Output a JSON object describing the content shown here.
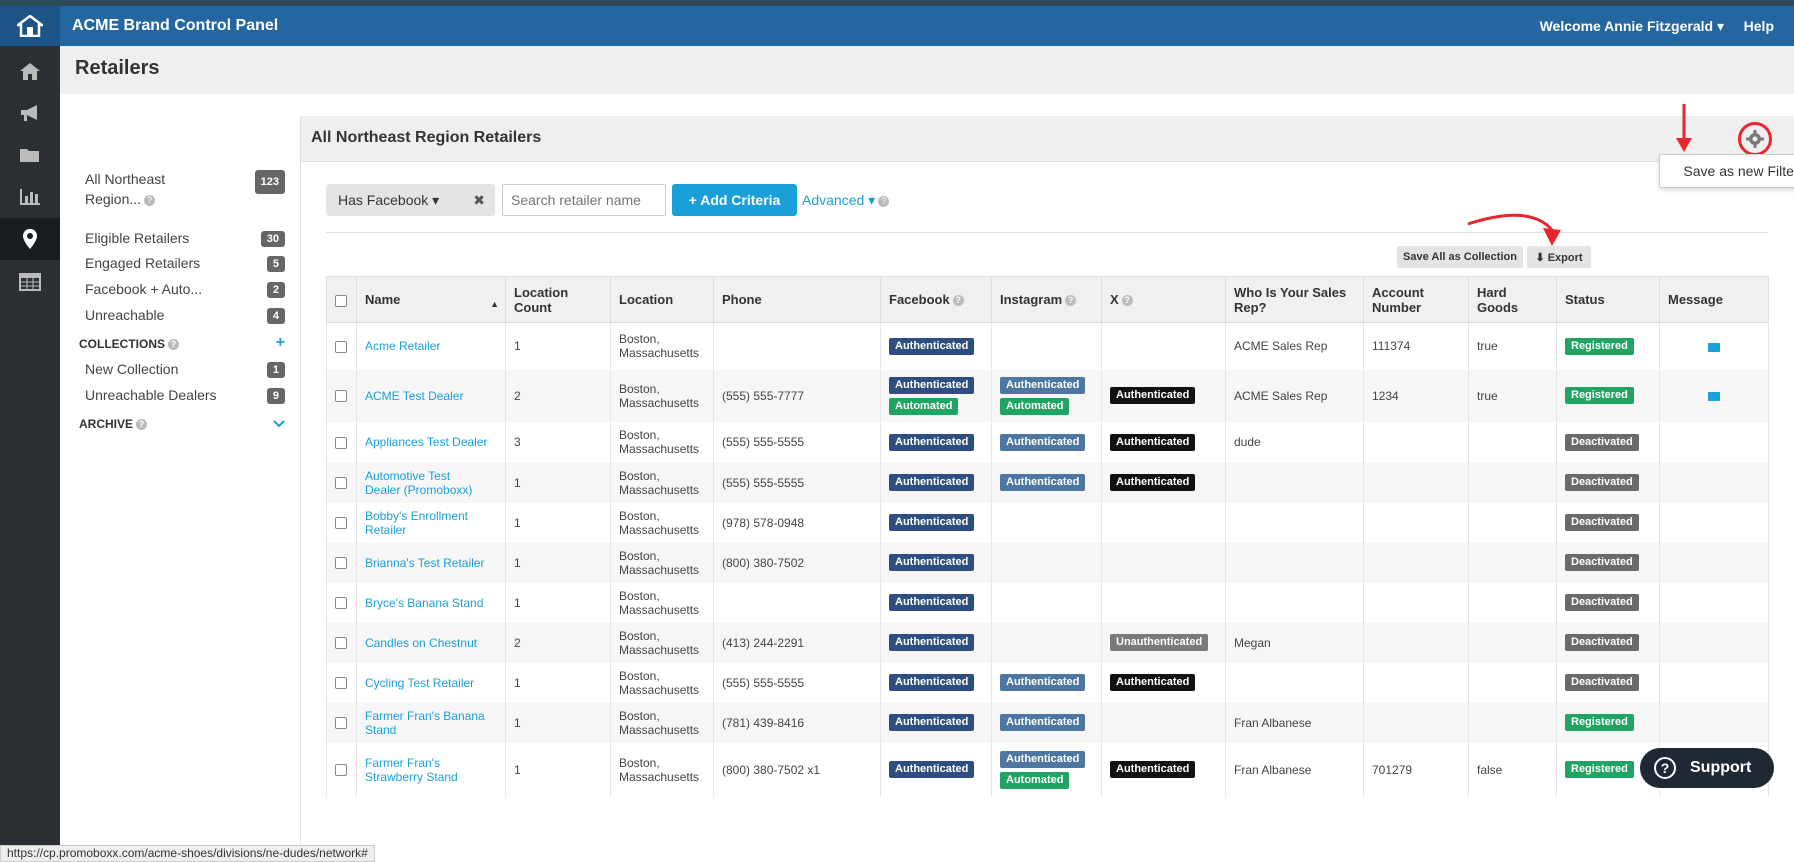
{
  "header": {
    "title": "ACME Brand Control Panel",
    "welcome": "Welcome Annie Fitzgerald ▾",
    "help": "Help"
  },
  "page_title": "Retailers",
  "filters": {
    "items": [
      {
        "label_line1": "All Northeast",
        "label_line2": "Region...",
        "count": "123"
      },
      {
        "label": "Eligible Retailers",
        "count": "30"
      },
      {
        "label": "Engaged Retailers",
        "count": "5"
      },
      {
        "label": "Facebook + Auto...",
        "count": "2"
      },
      {
        "label": "Unreachable",
        "count": "4"
      }
    ],
    "collections_label": "COLLECTIONS",
    "collections": [
      {
        "label": "New Collection",
        "count": "1"
      },
      {
        "label": "Unreachable Dealers",
        "count": "9"
      }
    ],
    "archive_label": "ARCHIVE"
  },
  "panel": {
    "title": "All Northeast Region Retailers",
    "save_filter": "Save as new Filter",
    "criteria_chip": "Has Facebook ▾",
    "chip_close": "✖",
    "search_placeholder": "Search retailer name",
    "add_criteria": "+ Add Criteria",
    "advanced": "Advanced ▾",
    "save_collection": "Save All as Collection",
    "export": "⬇ Export"
  },
  "table": {
    "headers": {
      "name": "Name",
      "loc_count_1": "Location",
      "loc_count_2": "Count",
      "location": "Location",
      "phone": "Phone",
      "facebook": "Facebook",
      "instagram": "Instagram",
      "x": "X",
      "rep_1": "Who Is Your Sales",
      "rep_2": "Rep?",
      "acct_1": "Account",
      "acct_2": "Number",
      "hard_1": "Hard",
      "hard_2": "Goods",
      "status": "Status",
      "message": "Message"
    },
    "loc_city": "Boston,",
    "loc_state": "Massachusetts",
    "rows": [
      {
        "name_1": "Acme Retailer",
        "name_2": "",
        "count": "1",
        "phone": "",
        "fb": "Authenticated",
        "fb_auto": "",
        "ig": "",
        "ig_auto": "",
        "x": "",
        "rep": "ACME Sales Rep",
        "acct": "111374",
        "hard": "true",
        "status": "Registered",
        "msg": true
      },
      {
        "name_1": "ACME Test Dealer",
        "name_2": "",
        "count": "2",
        "phone": "(555) 555-7777",
        "fb": "Authenticated",
        "fb_auto": "Automated",
        "ig": "Authenticated",
        "ig_auto": "Automated",
        "x": "Authenticated",
        "rep": "ACME Sales Rep",
        "acct": "1234",
        "hard": "true",
        "status": "Registered",
        "msg": true
      },
      {
        "name_1": "Appliances Test Dealer",
        "name_2": "",
        "count": "3",
        "phone": "(555) 555-5555",
        "fb": "Authenticated",
        "fb_auto": "",
        "ig": "Authenticated",
        "ig_auto": "",
        "x": "Authenticated",
        "rep": "dude",
        "acct": "",
        "hard": "",
        "status": "Deactivated",
        "msg": false
      },
      {
        "name_1": "Automotive Test",
        "name_2": "Dealer (Promoboxx)",
        "count": "1",
        "phone": "(555) 555-5555",
        "fb": "Authenticated",
        "fb_auto": "",
        "ig": "Authenticated",
        "ig_auto": "",
        "x": "Authenticated",
        "rep": "",
        "acct": "",
        "hard": "",
        "status": "Deactivated",
        "msg": false
      },
      {
        "name_1": "Bobby's Enrollment",
        "name_2": "Retailer",
        "count": "1",
        "phone": "(978) 578-0948",
        "fb": "Authenticated",
        "fb_auto": "",
        "ig": "",
        "ig_auto": "",
        "x": "",
        "rep": "",
        "acct": "",
        "hard": "",
        "status": "Deactivated",
        "msg": false
      },
      {
        "name_1": "Brianna's Test Retailer",
        "name_2": "",
        "count": "1",
        "phone": "(800) 380-7502",
        "fb": "Authenticated",
        "fb_auto": "",
        "ig": "",
        "ig_auto": "",
        "x": "",
        "rep": "",
        "acct": "",
        "hard": "",
        "status": "Deactivated",
        "msg": false
      },
      {
        "name_1": "Bryce's Banana Stand",
        "name_2": "",
        "count": "1",
        "phone": "",
        "fb": "Authenticated",
        "fb_auto": "",
        "ig": "",
        "ig_auto": "",
        "x": "",
        "rep": "",
        "acct": "",
        "hard": "",
        "status": "Deactivated",
        "msg": false
      },
      {
        "name_1": "Candles on Chestnut",
        "name_2": "",
        "count": "2",
        "phone": "(413) 244-2291",
        "fb": "Authenticated",
        "fb_auto": "",
        "ig": "",
        "ig_auto": "",
        "x": "Unauthenticated",
        "rep": "Megan",
        "acct": "",
        "hard": "",
        "status": "Deactivated",
        "msg": false
      },
      {
        "name_1": "Cycling Test Retailer",
        "name_2": "",
        "count": "1",
        "phone": "(555) 555-5555",
        "fb": "Authenticated",
        "fb_auto": "",
        "ig": "Authenticated",
        "ig_auto": "",
        "x": "Authenticated",
        "rep": "",
        "acct": "",
        "hard": "",
        "status": "Deactivated",
        "msg": false
      },
      {
        "name_1": "Farmer Fran's Banana",
        "name_2": "Stand",
        "count": "1",
        "phone": "(781) 439-8416",
        "fb": "Authenticated",
        "fb_auto": "",
        "ig": "Authenticated",
        "ig_auto": "",
        "x": "",
        "rep": "Fran Albanese",
        "acct": "",
        "hard": "",
        "status": "Registered",
        "msg": false
      },
      {
        "name_1": "Farmer Fran's",
        "name_2": "Strawberry Stand",
        "count": "1",
        "phone": "(800) 380-7502 x1",
        "fb": "Authenticated",
        "fb_auto": "",
        "ig": "Authenticated",
        "ig_auto": "Automated",
        "x": "Authenticated",
        "rep": "Fran Albanese",
        "acct": "701279",
        "hard": "false",
        "status": "Registered",
        "msg": true
      }
    ]
  },
  "support": "Support",
  "status_url": "https://cp.promoboxx.com/acme-shoes/divisions/ne-dudes/network#",
  "colors": {
    "header_blue": "#2366a0",
    "accent": "#1a9fd8",
    "registered": "#1fa463",
    "annotation_red": "#e8262d"
  }
}
